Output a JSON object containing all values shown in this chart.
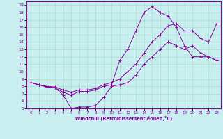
{
  "xlabel": "Windchill (Refroidissement éolien,°C)",
  "xlim": [
    -0.5,
    23.5
  ],
  "ylim": [
    5,
    19.5
  ],
  "xticks": [
    0,
    1,
    2,
    3,
    4,
    5,
    6,
    7,
    8,
    9,
    10,
    11,
    12,
    13,
    14,
    15,
    16,
    17,
    18,
    19,
    20,
    21,
    22,
    23
  ],
  "yticks": [
    5,
    6,
    7,
    8,
    9,
    10,
    11,
    12,
    13,
    14,
    15,
    16,
    17,
    18,
    19
  ],
  "bg_color": "#c8eef0",
  "line_color": "#880099",
  "grid_color": "#aaddcc",
  "lines": [
    {
      "x": [
        0,
        1,
        2,
        3,
        4,
        5,
        6,
        7,
        8,
        9,
        10,
        11,
        12,
        13,
        14,
        15,
        16,
        17,
        18,
        19,
        20,
        21,
        22,
        23
      ],
      "y": [
        8.5,
        8.2,
        7.9,
        7.8,
        7.2,
        6.8,
        7.3,
        7.3,
        7.5,
        8.0,
        8.2,
        11.5,
        13.0,
        15.5,
        18.0,
        18.8,
        18.0,
        17.5,
        16.0,
        13.5,
        12.0,
        12.0,
        12.0,
        11.5
      ]
    },
    {
      "x": [
        0,
        1,
        2,
        3,
        4,
        5,
        6,
        7,
        8,
        9,
        10,
        11,
        12,
        13,
        14,
        15,
        16,
        17,
        18,
        19,
        20,
        21,
        22,
        23
      ],
      "y": [
        8.5,
        8.2,
        8.0,
        7.9,
        7.5,
        7.2,
        7.5,
        7.5,
        7.7,
        8.2,
        8.5,
        9.0,
        10.0,
        11.0,
        12.5,
        14.0,
        15.0,
        16.2,
        16.5,
        15.5,
        15.5,
        14.5,
        14.0,
        16.5
      ]
    },
    {
      "x": [
        0,
        1,
        2,
        3,
        4,
        5,
        6,
        7,
        8,
        9,
        10,
        11,
        12,
        13,
        14,
        15,
        16,
        17,
        18,
        19,
        20,
        21,
        22,
        23
      ],
      "y": [
        8.5,
        8.2,
        7.9,
        7.8,
        6.8,
        5.0,
        5.2,
        5.2,
        5.4,
        6.5,
        8.0,
        8.2,
        8.5,
        9.5,
        11.0,
        12.0,
        13.0,
        14.0,
        13.5,
        13.0,
        13.5,
        12.5,
        12.0,
        11.5
      ]
    }
  ]
}
